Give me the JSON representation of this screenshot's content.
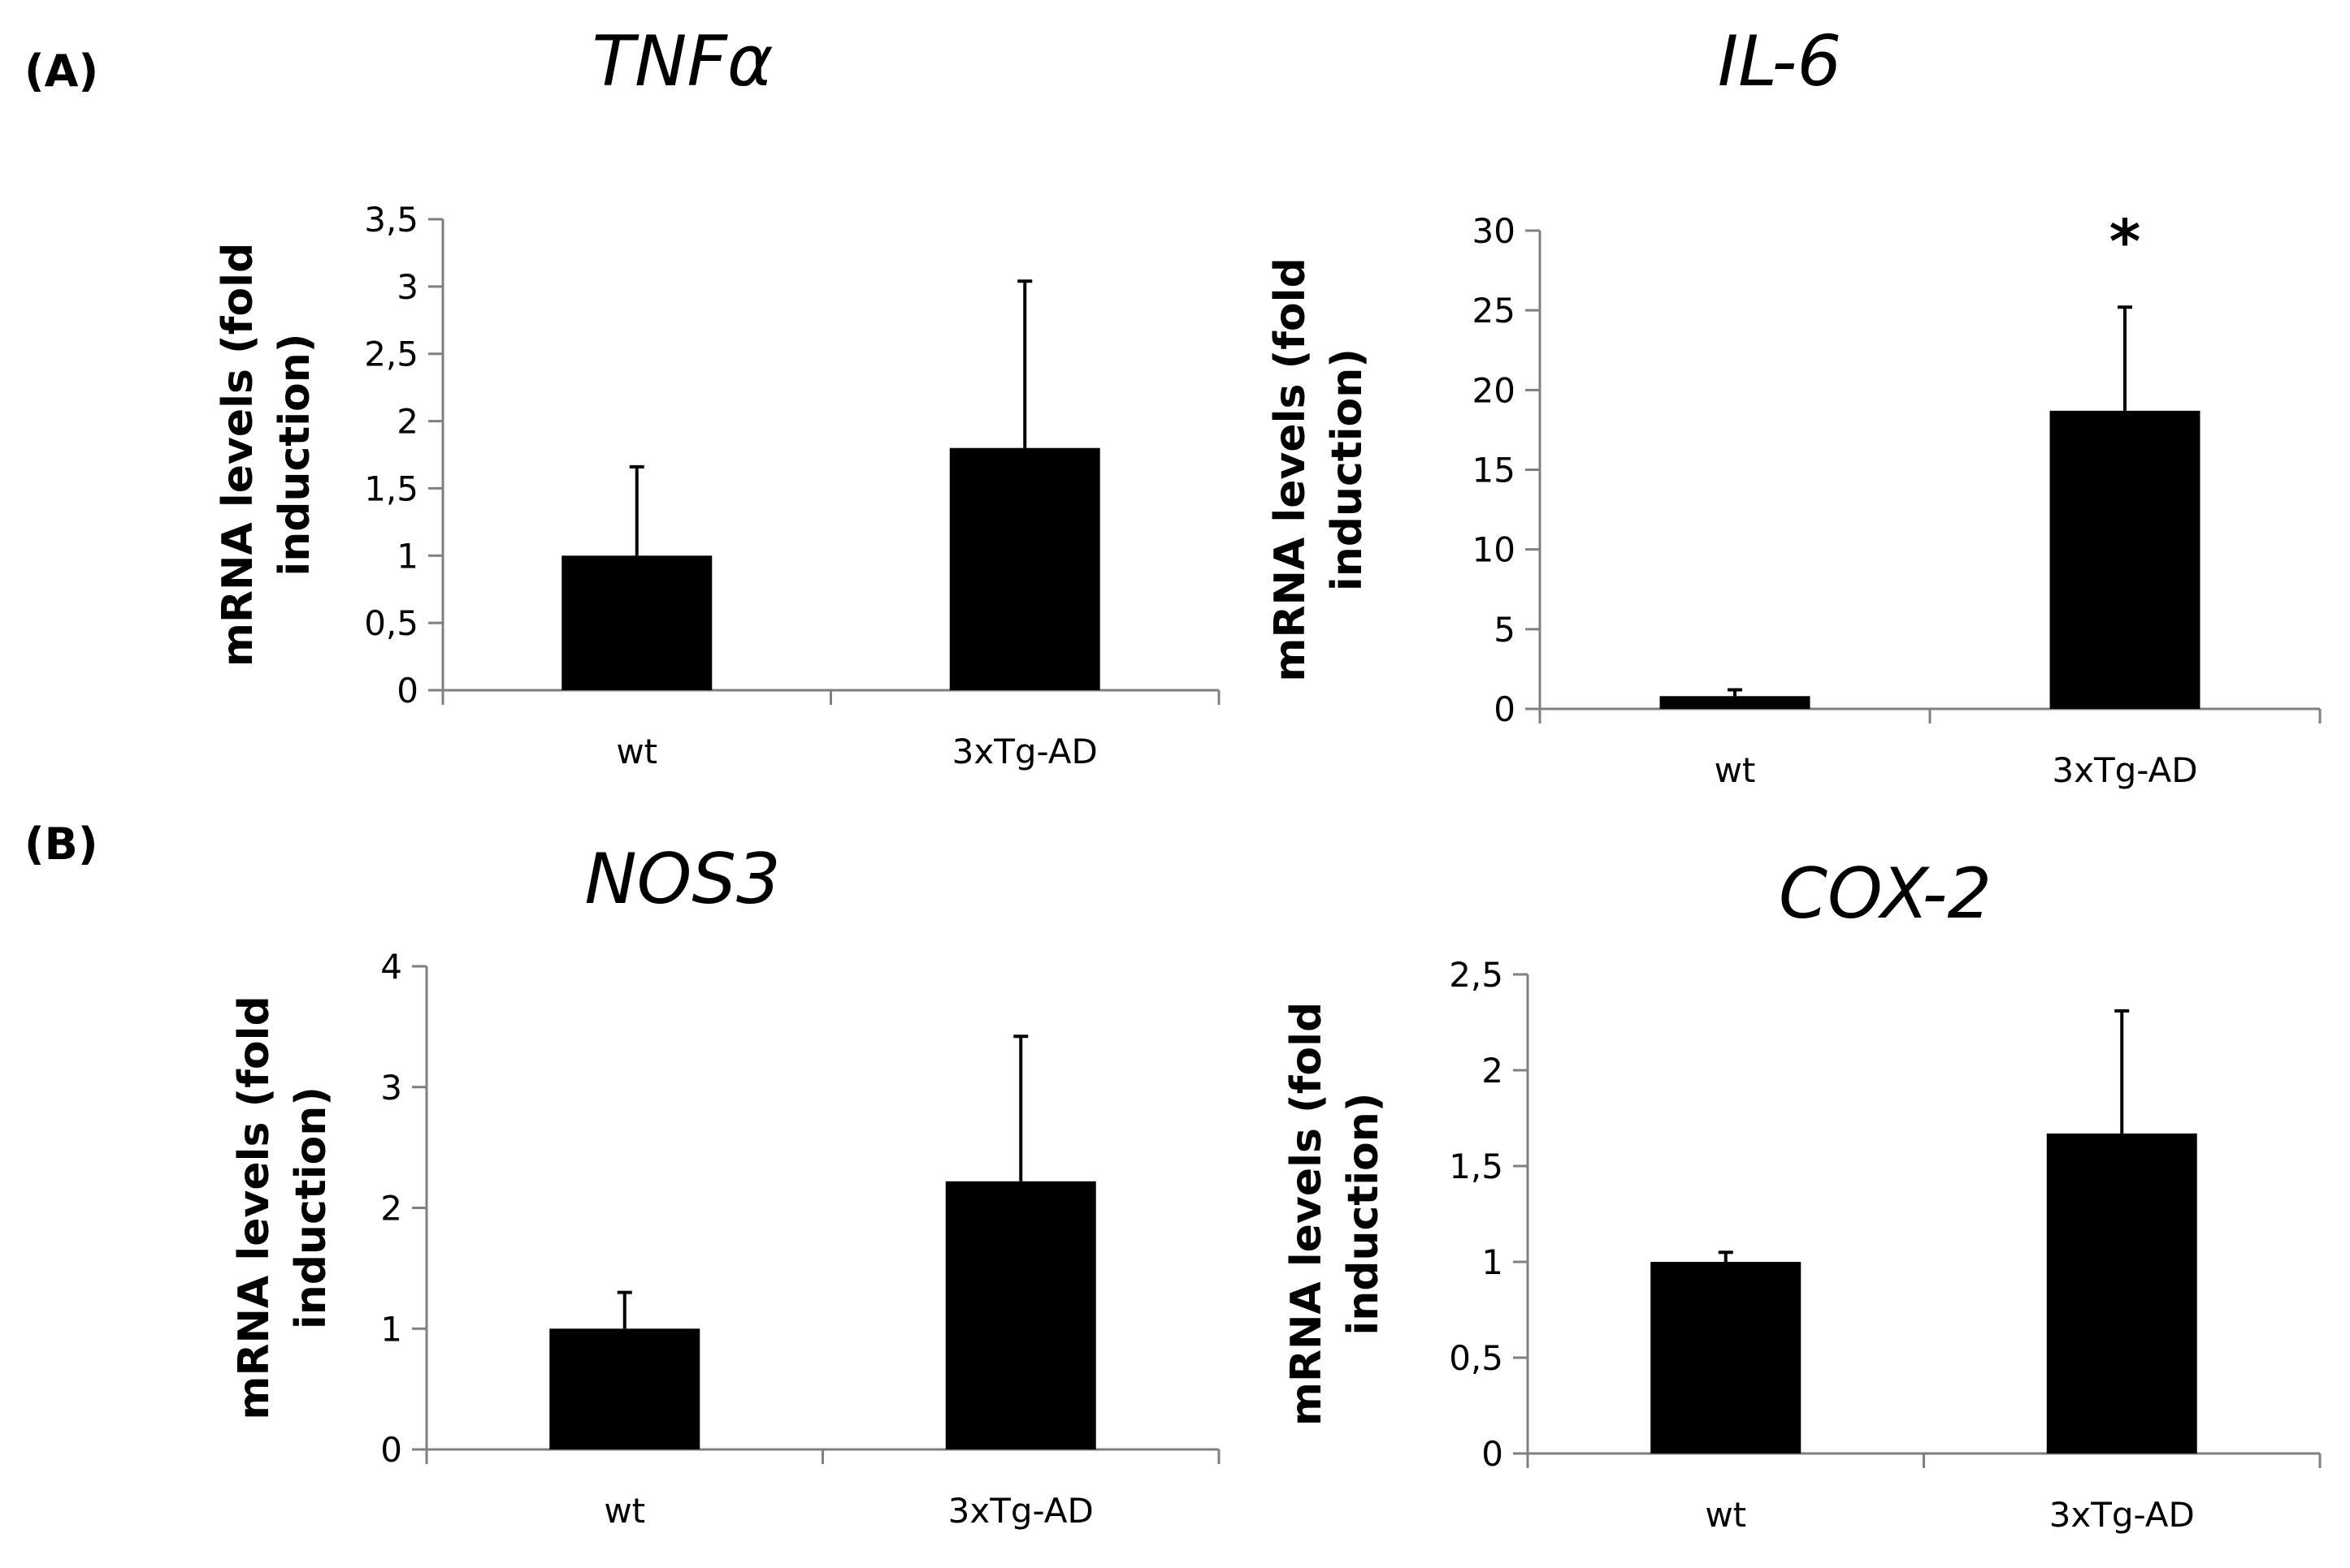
{
  "panel_labels": [
    "(A)",
    "(B)"
  ],
  "colors": {
    "bar": "#000000",
    "axis": "#7f7f7f",
    "background": "#ffffff"
  },
  "chart_data": [
    {
      "type": "bar",
      "title": "TNFα",
      "ylabel_lines": [
        "mRNA levels (fold",
        "induction)"
      ],
      "categories": [
        "wt",
        "3xTg-AD"
      ],
      "values": [
        1.0,
        1.8
      ],
      "error_upper": [
        0.66,
        1.24
      ],
      "ylim": [
        0,
        3.5
      ],
      "yticks": [
        0,
        0.5,
        1,
        1.5,
        2,
        2.5,
        3,
        3.5
      ],
      "ytick_labels": [
        "0",
        "0,5",
        "1",
        "1,5",
        "2",
        "2,5",
        "3",
        "3,5"
      ],
      "significance": [
        "",
        ""
      ]
    },
    {
      "type": "bar",
      "title": "IL-6",
      "ylabel_lines": [
        "mRNA levels (fold",
        "induction)"
      ],
      "categories": [
        "wt",
        "3xTg-AD"
      ],
      "values": [
        0.8,
        18.7
      ],
      "error_upper": [
        0.4,
        6.5
      ],
      "ylim": [
        0,
        30
      ],
      "yticks": [
        0,
        5,
        10,
        15,
        20,
        25,
        30
      ],
      "ytick_labels": [
        "0",
        "5",
        "10",
        "15",
        "20",
        "25",
        "30"
      ],
      "significance": [
        "",
        "*"
      ]
    },
    {
      "type": "bar",
      "title": "NOS3",
      "ylabel_lines": [
        "mRNA levels (fold",
        "induction)"
      ],
      "categories": [
        "wt",
        "3xTg-AD"
      ],
      "values": [
        1.0,
        2.22
      ],
      "error_upper": [
        0.3,
        1.2
      ],
      "ylim": [
        0,
        4
      ],
      "yticks": [
        0,
        1,
        2,
        3,
        4
      ],
      "ytick_labels": [
        "0",
        "1",
        "2",
        "3",
        "4"
      ],
      "significance": [
        "",
        ""
      ]
    },
    {
      "type": "bar",
      "title": "COX-2",
      "ylabel_lines": [
        "mRNA levels (fold",
        "induction)"
      ],
      "categories": [
        "wt",
        "3xTg-AD"
      ],
      "values": [
        1.0,
        1.67
      ],
      "error_upper": [
        0.05,
        0.64
      ],
      "ylim": [
        0,
        2.5
      ],
      "yticks": [
        0,
        0.5,
        1,
        1.5,
        2,
        2.5
      ],
      "ytick_labels": [
        "0",
        "0,5",
        "1",
        "1,5",
        "2",
        "2,5"
      ],
      "significance": [
        "",
        ""
      ]
    }
  ]
}
